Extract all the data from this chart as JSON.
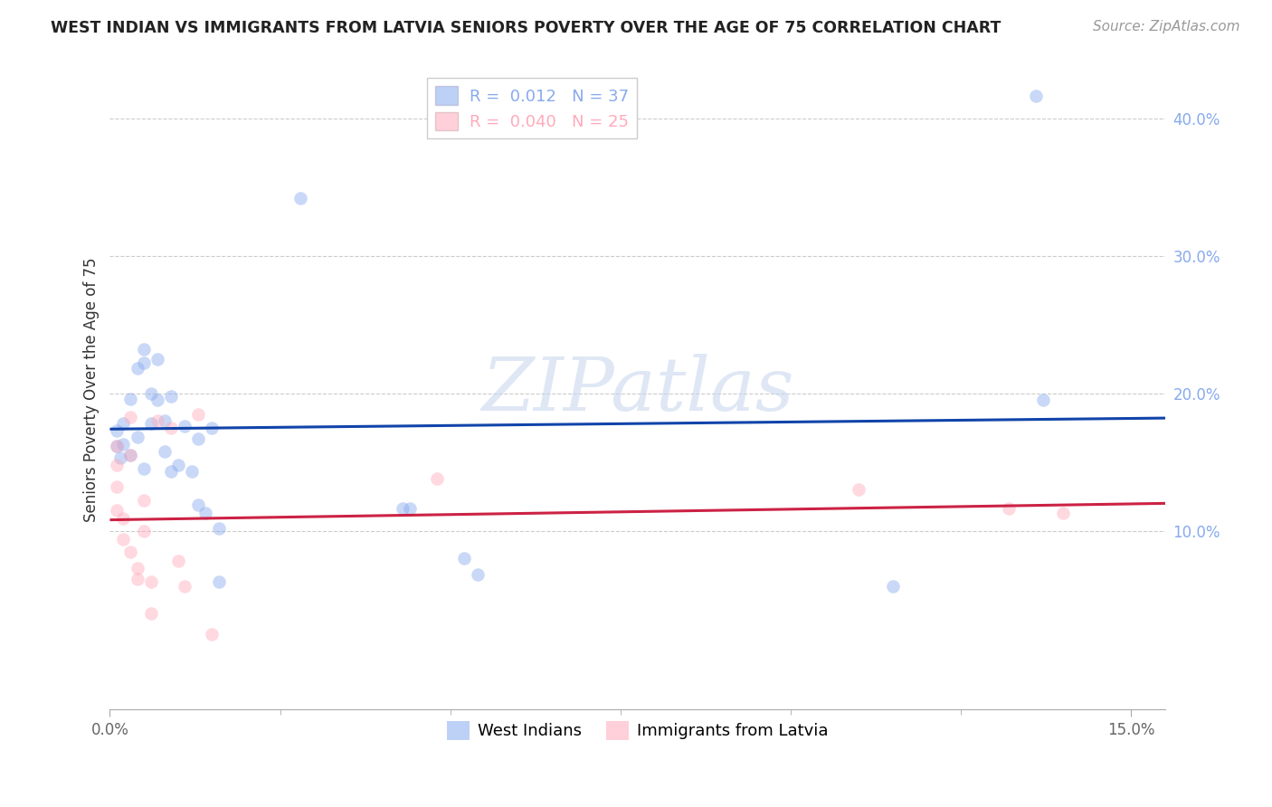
{
  "title": "WEST INDIAN VS IMMIGRANTS FROM LATVIA SENIORS POVERTY OVER THE AGE OF 75 CORRELATION CHART",
  "source": "Source: ZipAtlas.com",
  "ylabel": "Seniors Poverty Over the Age of 75",
  "xlim": [
    0.0,
    0.155
  ],
  "ylim": [
    -0.03,
    0.435
  ],
  "yticks": [
    0.1,
    0.2,
    0.3,
    0.4
  ],
  "ytick_labels": [
    "10.0%",
    "20.0%",
    "30.0%",
    "40.0%"
  ],
  "xtick_major": [
    0.0,
    0.15
  ],
  "xtick_major_labels": [
    "0.0%",
    "15.0%"
  ],
  "xtick_minor": [
    0.025,
    0.05,
    0.075,
    0.1,
    0.125
  ],
  "blue_R": "0.012",
  "blue_N": "37",
  "pink_R": "0.040",
  "pink_N": "25",
  "blue_label": "West Indians",
  "pink_label": "Immigrants from Latvia",
  "blue_color": "#88aaee",
  "pink_color": "#ffaabb",
  "blue_line_color": "#1144aa",
  "pink_line_color": "#cc2244",
  "watermark": "ZIPatlas",
  "blue_points_x": [
    0.001,
    0.001,
    0.0015,
    0.002,
    0.002,
    0.003,
    0.003,
    0.004,
    0.004,
    0.005,
    0.005,
    0.005,
    0.006,
    0.006,
    0.007,
    0.007,
    0.008,
    0.008,
    0.009,
    0.009,
    0.01,
    0.011,
    0.012,
    0.013,
    0.013,
    0.014,
    0.015,
    0.016,
    0.016,
    0.028,
    0.043,
    0.044,
    0.052,
    0.054,
    0.115,
    0.136,
    0.137
  ],
  "blue_points_y": [
    0.173,
    0.162,
    0.153,
    0.178,
    0.163,
    0.196,
    0.155,
    0.218,
    0.168,
    0.232,
    0.222,
    0.145,
    0.2,
    0.178,
    0.225,
    0.195,
    0.18,
    0.158,
    0.198,
    0.143,
    0.148,
    0.176,
    0.143,
    0.167,
    0.119,
    0.113,
    0.175,
    0.063,
    0.102,
    0.342,
    0.116,
    0.116,
    0.08,
    0.068,
    0.06,
    0.416,
    0.195
  ],
  "pink_points_x": [
    0.001,
    0.001,
    0.001,
    0.001,
    0.002,
    0.002,
    0.003,
    0.003,
    0.003,
    0.004,
    0.004,
    0.005,
    0.005,
    0.006,
    0.006,
    0.007,
    0.009,
    0.01,
    0.011,
    0.013,
    0.015,
    0.048,
    0.11,
    0.132,
    0.14
  ],
  "pink_points_y": [
    0.162,
    0.148,
    0.132,
    0.115,
    0.109,
    0.094,
    0.155,
    0.183,
    0.085,
    0.073,
    0.065,
    0.1,
    0.122,
    0.063,
    0.04,
    0.18,
    0.175,
    0.078,
    0.06,
    0.185,
    0.025,
    0.138,
    0.13,
    0.116,
    0.113
  ],
  "blue_trend_x": [
    0.0,
    0.155
  ],
  "blue_trend_y": [
    0.174,
    0.182
  ],
  "pink_trend_x": [
    0.0,
    0.155
  ],
  "pink_trend_y": [
    0.108,
    0.12
  ],
  "marker_size": 110,
  "marker_alpha": 0.45,
  "title_fontsize": 12.5,
  "source_fontsize": 11,
  "tick_fontsize": 12,
  "ylabel_fontsize": 12,
  "legend_fontsize": 13
}
